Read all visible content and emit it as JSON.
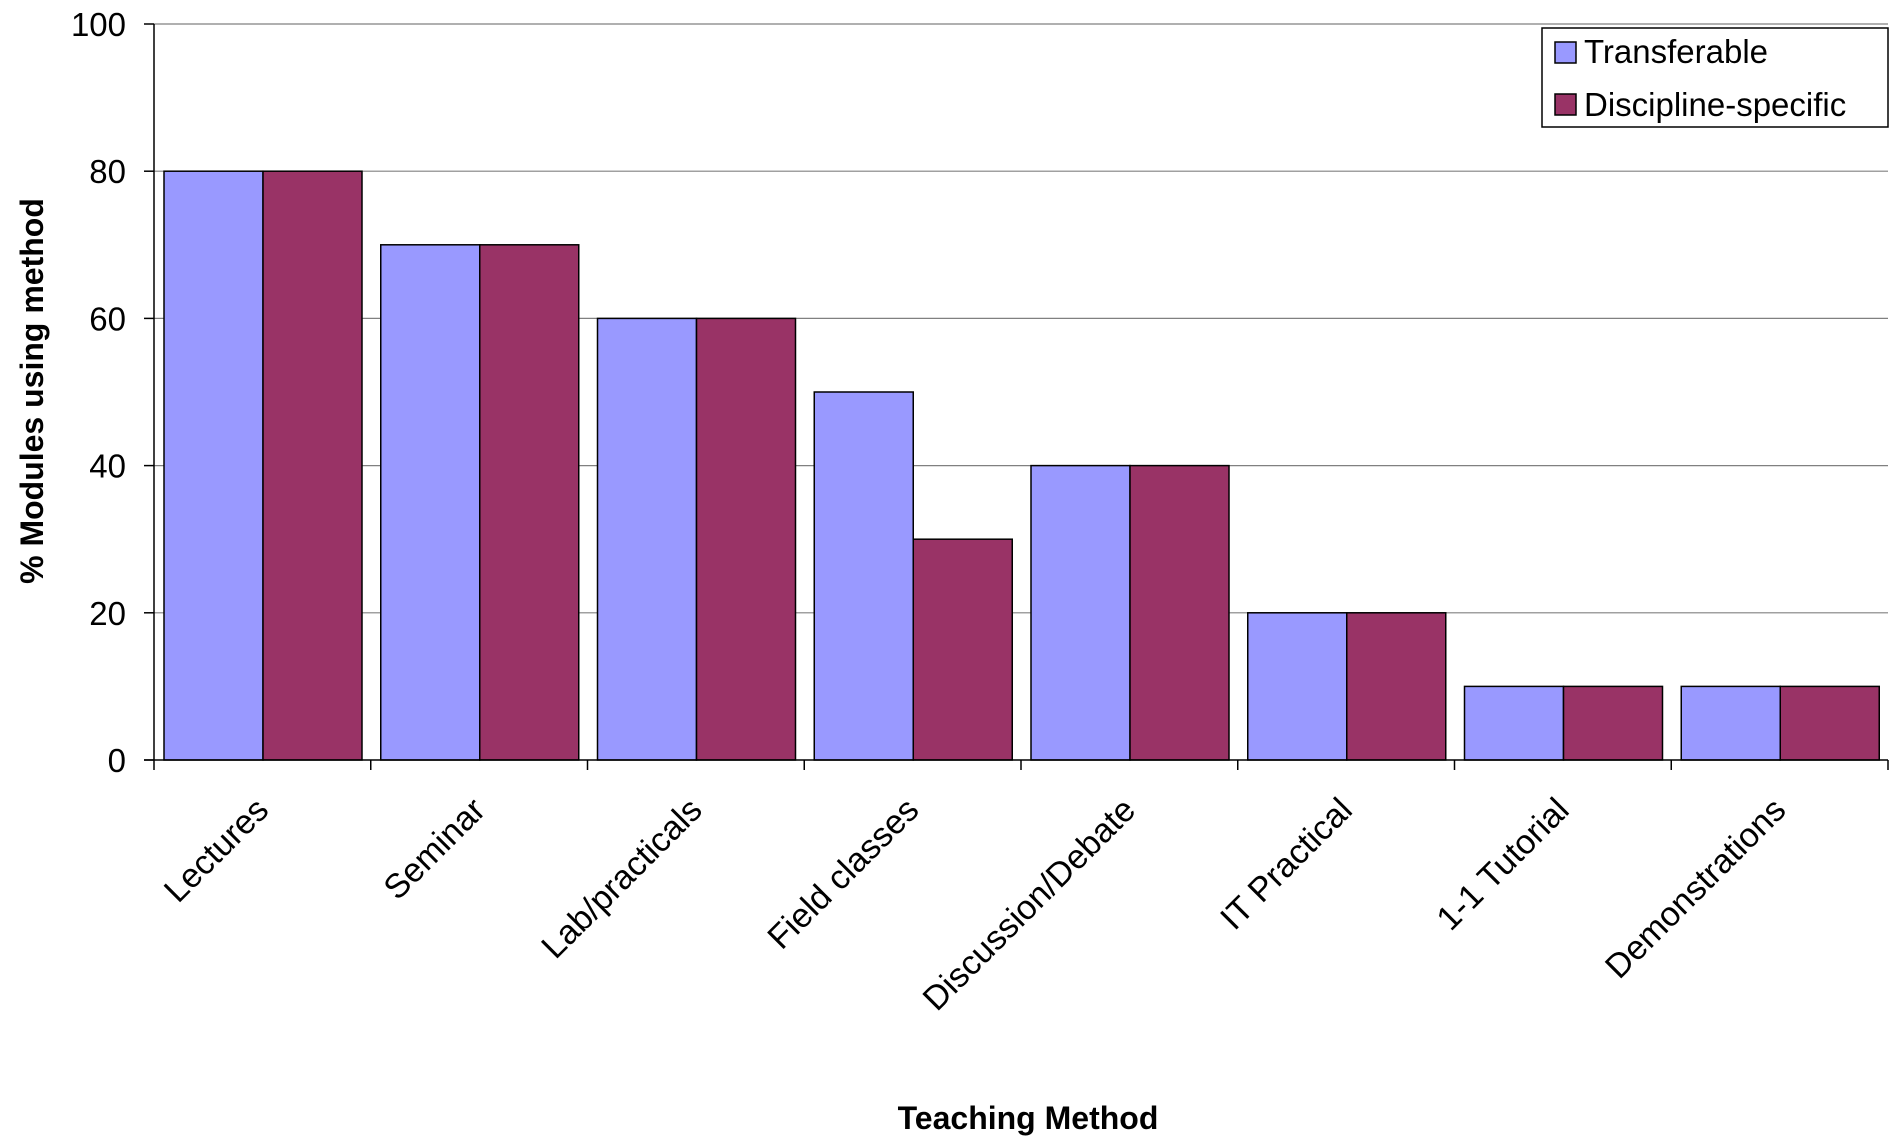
{
  "chart_data": {
    "type": "bar",
    "title": "",
    "xlabel": "Teaching Method",
    "ylabel": "% Modules using method",
    "ylim": [
      0,
      100
    ],
    "yticks": [
      0,
      20,
      40,
      60,
      80,
      100
    ],
    "grid": true,
    "legend_position": "top-right",
    "categories": [
      "Lectures",
      "Seminar",
      "Lab/practicals",
      "Field classes",
      "Discussion/Debate",
      "IT Practical",
      "1-1 Tutorial",
      "Demonstrations"
    ],
    "series": [
      {
        "name": "Transferable",
        "color": "#9999FF",
        "values": [
          80,
          70,
          60,
          50,
          40,
          20,
          10,
          10
        ]
      },
      {
        "name": "Discipline-specific",
        "color": "#993366",
        "values": [
          80,
          70,
          60,
          30,
          40,
          20,
          10,
          10
        ]
      }
    ]
  }
}
